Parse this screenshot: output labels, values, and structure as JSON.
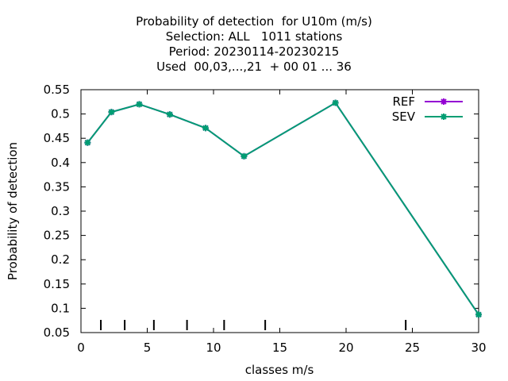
{
  "chart_data": {
    "type": "line",
    "title_lines": [
      "Probability of detection  for U10m (m/s)",
      "Selection: ALL   1011 stations",
      "Period: 20230114-20230215",
      "Used  00,03,...,21  + 00 01 ... 36"
    ],
    "xlabel": "classes m/s",
    "ylabel": "Probability of detection",
    "xlim": [
      0,
      30
    ],
    "ylim": [
      0.05,
      0.55
    ],
    "xticks": [
      0,
      5,
      10,
      15,
      20,
      25,
      30
    ],
    "xtick_labels": [
      "0",
      "5",
      "10",
      "15",
      "20",
      "25",
      "30"
    ],
    "yticks": [
      0.05,
      0.1,
      0.15,
      0.2,
      0.25,
      0.3,
      0.35,
      0.4,
      0.45,
      0.5,
      0.55
    ],
    "ytick_labels": [
      "0.05",
      "0.1",
      "0.15",
      "0.2",
      "0.25",
      "0.3",
      "0.35",
      "0.4",
      "0.45",
      "0.5",
      "0.55"
    ],
    "grid": false,
    "legend_position": "top-right",
    "class_boundaries": [
      1.5,
      3.3,
      5.5,
      8.0,
      10.8,
      13.9,
      24.5
    ],
    "series": [
      {
        "name": "REF",
        "color": "#9400d3",
        "x": [
          0.5,
          2.3,
          4.4,
          6.7,
          9.4,
          12.3,
          19.2,
          30.0
        ],
        "y": [
          0.441,
          0.504,
          0.52,
          0.499,
          0.471,
          0.413,
          0.523,
          0.087
        ]
      },
      {
        "name": "SEV",
        "color": "#009e73",
        "x": [
          0.5,
          2.3,
          4.4,
          6.7,
          9.4,
          12.3,
          19.2,
          30.0
        ],
        "y": [
          0.441,
          0.504,
          0.52,
          0.499,
          0.471,
          0.413,
          0.523,
          0.087
        ]
      }
    ]
  }
}
